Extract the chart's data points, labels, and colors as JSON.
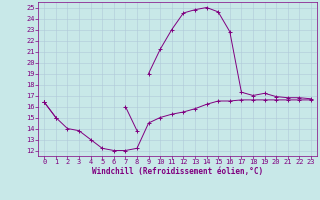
{
  "bg_color": "#c8e8e8",
  "line_color": "#800080",
  "grid_color": "#b0c8d8",
  "xlabel": "Windchill (Refroidissement éolien,°C)",
  "x_all": [
    0,
    1,
    2,
    3,
    4,
    5,
    6,
    7,
    8,
    9,
    10,
    11,
    12,
    13,
    14,
    15,
    16,
    17,
    18,
    19,
    20,
    21,
    22,
    23
  ],
  "curve_upper": [
    16.4,
    null,
    null,
    null,
    null,
    null,
    null,
    null,
    null,
    19.0,
    21.2,
    23.0,
    24.5,
    24.8,
    25.0,
    24.6,
    22.8,
    17.3,
    17.0,
    17.2,
    16.9,
    16.8,
    16.8,
    16.7
  ],
  "curve_lower": [
    16.4,
    15.0,
    14.0,
    13.8,
    13.0,
    12.2,
    12.0,
    12.0,
    12.2,
    14.5,
    15.0,
    15.3,
    15.5,
    15.8,
    16.2,
    16.5,
    16.5,
    16.6,
    16.6,
    16.6,
    16.6,
    16.6,
    16.6,
    16.6
  ],
  "curve_mid": [
    16.4,
    15.0,
    null,
    null,
    null,
    null,
    null,
    16.0,
    13.8,
    null,
    null,
    null,
    null,
    null,
    null,
    null,
    null,
    null,
    null,
    null,
    null,
    null,
    null,
    null
  ],
  "ylim_min": 11.5,
  "ylim_max": 25.5,
  "ytick_min": 12,
  "ytick_max": 25,
  "xtick_max": 23,
  "xlabel_fontsize": 5.5,
  "tick_labelsize": 5.0,
  "lw": 0.7,
  "ms": 2.5
}
